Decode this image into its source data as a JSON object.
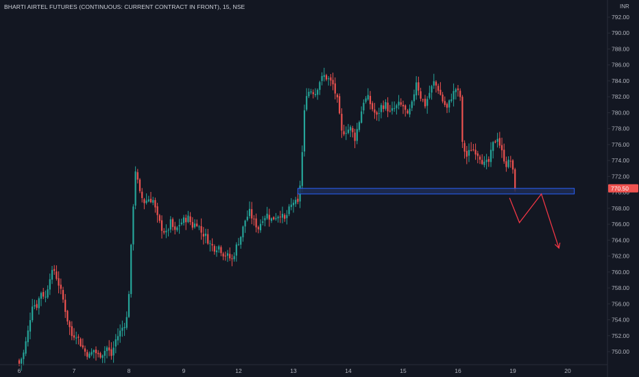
{
  "header": {
    "title": "BHARTI AIRTEL FUTURES (CONTINUOUS: CURRENT CONTRACT IN FRONT), 15, NSE",
    "currency": "INR"
  },
  "colors": {
    "background": "#131722",
    "up": "#26a69a",
    "down": "#ef5350",
    "zone_fill": "#1e2c52",
    "zone_border": "#2962ff",
    "arrow": "#f23645",
    "axis_text": "#b2b5be",
    "axis_line": "#2a2e39"
  },
  "chart_data": {
    "type": "candlestick",
    "timeframe": "15",
    "exchange": "NSE",
    "symbol": "BHARTI AIRTEL FUTURES",
    "y_ticks": [
      750,
      752,
      754,
      756,
      758,
      760,
      762,
      764,
      766,
      768,
      770,
      772,
      774,
      776,
      778,
      780,
      782,
      784,
      786,
      788,
      790,
      792
    ],
    "y_tick_labels": [
      "750.00",
      "752.00",
      "754.00",
      "756.00",
      "758.00",
      "760.00",
      "762.00",
      "764.00",
      "766.00",
      "768.00",
      "770.00",
      "772.00",
      "774.00",
      "776.00",
      "778.00",
      "780.00",
      "782.00",
      "784.00",
      "786.00",
      "788.00",
      "790.00",
      "792.00"
    ],
    "ylim": [
      748.5,
      793.5
    ],
    "x_labels": [
      "6",
      "7",
      "8",
      "9",
      "12",
      "13",
      "14",
      "15",
      "16",
      "19",
      "20"
    ],
    "x_label_index": [
      0,
      25,
      50,
      75,
      100,
      125,
      150,
      175,
      200,
      225,
      250
    ],
    "last_price": 770.5,
    "last_price_label": "770.50",
    "grid": false,
    "zone": {
      "from_index": 127,
      "to_index": 253,
      "low": 769.8,
      "high": 770.5
    },
    "projection": [
      {
        "i": 223.5,
        "price": 769.3
      },
      {
        "i": 228,
        "price": 766.2
      },
      {
        "i": 238,
        "price": 769.8
      },
      {
        "i": 246,
        "price": 763.0
      }
    ],
    "anchors": [
      [
        0,
        748.5
      ],
      [
        2,
        749.8
      ],
      [
        4,
        752.5
      ],
      [
        6,
        756.0
      ],
      [
        8,
        755.8
      ],
      [
        10,
        757.5
      ],
      [
        12,
        756.8
      ],
      [
        14,
        759.5
      ],
      [
        16,
        760.2
      ],
      [
        18,
        758.5
      ],
      [
        20,
        756.5
      ],
      [
        22,
        754.0
      ],
      [
        24,
        752.0
      ],
      [
        26,
        752.2
      ],
      [
        28,
        751.0
      ],
      [
        30,
        750.0
      ],
      [
        32,
        749.5
      ],
      [
        34,
        750.2
      ],
      [
        36,
        749.5
      ],
      [
        38,
        749.8
      ],
      [
        40,
        750.5
      ],
      [
        42,
        749.5
      ],
      [
        44,
        751.5
      ],
      [
        46,
        752.5
      ],
      [
        48,
        753.5
      ],
      [
        49,
        754.2
      ],
      [
        50,
        757.5
      ],
      [
        51,
        763.0
      ],
      [
        52,
        768.5
      ],
      [
        53,
        772.8
      ],
      [
        55,
        769.8
      ],
      [
        57,
        768.8
      ],
      [
        59,
        769.2
      ],
      [
        61,
        769.0
      ],
      [
        63,
        766.8
      ],
      [
        65,
        765.5
      ],
      [
        67,
        764.8
      ],
      [
        69,
        766.2
      ],
      [
        71,
        765.0
      ],
      [
        73,
        766.0
      ],
      [
        75,
        766.5
      ],
      [
        77,
        766.8
      ],
      [
        79,
        765.8
      ],
      [
        81,
        766.2
      ],
      [
        83,
        765.0
      ],
      [
        85,
        764.5
      ],
      [
        87,
        763.5
      ],
      [
        89,
        763.0
      ],
      [
        91,
        763.2
      ],
      [
        93,
        762.3
      ],
      [
        95,
        762.0
      ],
      [
        97,
        761.5
      ],
      [
        99,
        763.2
      ],
      [
        101,
        764.5
      ],
      [
        103,
        766.5
      ],
      [
        105,
        767.5
      ],
      [
        107,
        766.3
      ],
      [
        109,
        765.5
      ],
      [
        111,
        766.8
      ],
      [
        113,
        767.2
      ],
      [
        115,
        766.6
      ],
      [
        117,
        767.0
      ],
      [
        119,
        767.3
      ],
      [
        121,
        766.5
      ],
      [
        123,
        767.8
      ],
      [
        125,
        768.8
      ],
      [
        127,
        768.5
      ],
      [
        128,
        771.0
      ],
      [
        129,
        775.0
      ],
      [
        130,
        780.0
      ],
      [
        131,
        782.5
      ],
      [
        133,
        782.8
      ],
      [
        135,
        782.5
      ],
      [
        137,
        784.0
      ],
      [
        139,
        784.6
      ],
      [
        141,
        784.2
      ],
      [
        143,
        783.5
      ],
      [
        145,
        781.5
      ],
      [
        147,
        777.5
      ],
      [
        149,
        777.8
      ],
      [
        151,
        778.0
      ],
      [
        153,
        776.8
      ],
      [
        155,
        779.0
      ],
      [
        157,
        781.5
      ],
      [
        159,
        781.8
      ],
      [
        161,
        780.5
      ],
      [
        163,
        779.5
      ],
      [
        165,
        780.8
      ],
      [
        167,
        781.0
      ],
      [
        169,
        780.0
      ],
      [
        171,
        780.5
      ],
      [
        173,
        781.0
      ],
      [
        175,
        780.8
      ],
      [
        177,
        779.5
      ],
      [
        179,
        781.0
      ],
      [
        181,
        784.0
      ],
      [
        183,
        782.0
      ],
      [
        185,
        781.0
      ],
      [
        187,
        782.5
      ],
      [
        189,
        783.8
      ],
      [
        191,
        783.0
      ],
      [
        193,
        781.5
      ],
      [
        195,
        780.5
      ],
      [
        197,
        782.0
      ],
      [
        199,
        783.0
      ],
      [
        201,
        782.0
      ],
      [
        202,
        776.0
      ],
      [
        204,
        774.5
      ],
      [
        206,
        775.5
      ],
      [
        208,
        775.2
      ],
      [
        210,
        774.5
      ],
      [
        212,
        773.5
      ],
      [
        214,
        773.8
      ],
      [
        216,
        776.0
      ],
      [
        218,
        777.0
      ],
      [
        220,
        775.0
      ],
      [
        222,
        773.5
      ],
      [
        224,
        774.0
      ],
      [
        225,
        772.5
      ],
      [
        226,
        770.5
      ]
    ]
  }
}
